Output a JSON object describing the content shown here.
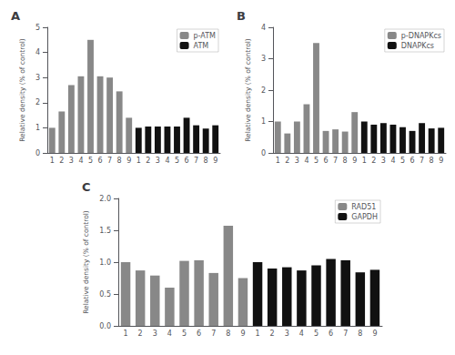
{
  "chart_data": [
    {
      "type": "bar",
      "title": "A",
      "categories": [
        "1",
        "2",
        "3",
        "4",
        "5",
        "6",
        "7",
        "8",
        "9",
        "1",
        "2",
        "3",
        "4",
        "5",
        "6",
        "7",
        "8",
        "9"
      ],
      "series": [
        {
          "name": "p-ATM",
          "color": "#888888",
          "values": [
            1.0,
            1.65,
            2.7,
            3.05,
            4.5,
            3.05,
            3.0,
            2.45,
            1.4,
            null,
            null,
            null,
            null,
            null,
            null,
            null,
            null,
            null
          ]
        },
        {
          "name": "ATM",
          "color": "#111111",
          "values": [
            null,
            null,
            null,
            null,
            null,
            null,
            null,
            null,
            null,
            1.0,
            1.05,
            1.05,
            1.05,
            1.05,
            1.4,
            1.1,
            0.97,
            1.1
          ]
        }
      ],
      "ylabel": "Relative density (% of control)",
      "ylim": [
        0,
        5
      ],
      "yticks": [
        0,
        1,
        2,
        3,
        4,
        5
      ],
      "grid": false,
      "legend": "upper right"
    },
    {
      "type": "bar",
      "title": "B",
      "categories": [
        "1",
        "2",
        "3",
        "4",
        "5",
        "6",
        "7",
        "8",
        "9",
        "1",
        "2",
        "3",
        "4",
        "5",
        "6",
        "7",
        "8",
        "9"
      ],
      "series": [
        {
          "name": "p-DNAPKcs",
          "color": "#888888",
          "values": [
            1.0,
            0.62,
            1.0,
            1.55,
            3.5,
            0.7,
            0.75,
            0.68,
            1.3,
            null,
            null,
            null,
            null,
            null,
            null,
            null,
            null,
            null
          ]
        },
        {
          "name": "DNAPKcs",
          "color": "#111111",
          "values": [
            null,
            null,
            null,
            null,
            null,
            null,
            null,
            null,
            null,
            1.0,
            0.9,
            0.95,
            0.9,
            0.82,
            0.7,
            0.95,
            0.78,
            0.8
          ]
        }
      ],
      "ylabel": "Relative density (% of control)",
      "ylim": [
        0,
        4
      ],
      "yticks": [
        0,
        1,
        2,
        3,
        4
      ],
      "grid": false,
      "legend": "upper right"
    },
    {
      "type": "bar",
      "title": "C",
      "categories": [
        "1",
        "2",
        "3",
        "4",
        "5",
        "6",
        "7",
        "8",
        "9",
        "1",
        "2",
        "3",
        "4",
        "5",
        "6",
        "7",
        "8",
        "9"
      ],
      "series": [
        {
          "name": "RAD51",
          "color": "#888888",
          "values": [
            1.0,
            0.87,
            0.79,
            0.6,
            1.02,
            1.03,
            0.83,
            1.57,
            0.75,
            null,
            null,
            null,
            null,
            null,
            null,
            null,
            null,
            null
          ]
        },
        {
          "name": "GAPDH",
          "color": "#111111",
          "values": [
            null,
            null,
            null,
            null,
            null,
            null,
            null,
            null,
            null,
            1.0,
            0.9,
            0.92,
            0.87,
            0.95,
            1.05,
            1.03,
            0.84,
            0.88
          ]
        }
      ],
      "ylabel": "Relative density (% of control)",
      "ylim": [
        0.0,
        2.0
      ],
      "yticks": [
        {
          "value": 0,
          "label": "0.0"
        },
        {
          "value": 0.5,
          "label": "0.5"
        },
        {
          "value": 1,
          "label": "1.0"
        },
        {
          "value": 1.5,
          "label": "1.5"
        },
        {
          "value": 2,
          "label": "2.0"
        }
      ],
      "grid": false,
      "legend": "upper right"
    }
  ]
}
